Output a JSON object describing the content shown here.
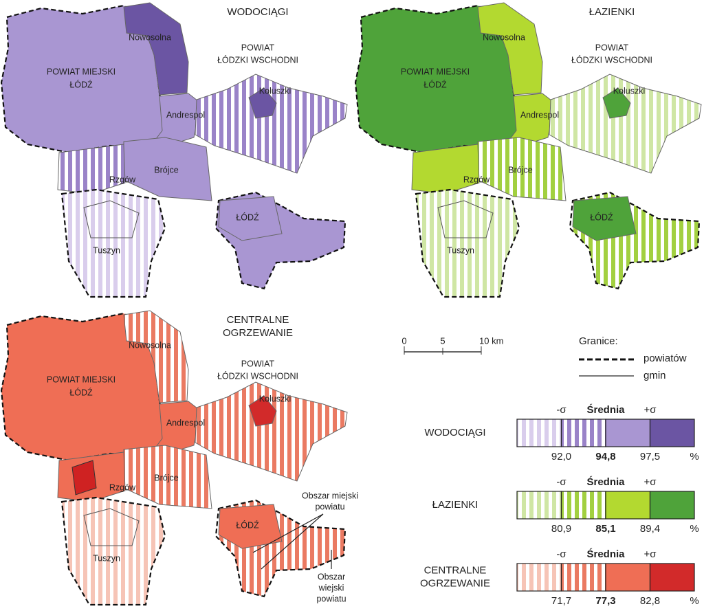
{
  "maps": [
    {
      "title": [
        "WODOCIĄGI"
      ],
      "labels": [
        "Nowosolna",
        "POWIAT MIEJSKI",
        "ŁÓDŹ",
        "POWIAT",
        "ŁÓDZKI WSCHODNI",
        "Koluszki",
        "Andrespol",
        "Brójce",
        "Rzgów",
        "ŁÓDŹ",
        "Tuszyn"
      ]
    },
    {
      "title": [
        "ŁAZIENKI"
      ],
      "labels": [
        "Nowosolna",
        "POWIAT MIEJSKI",
        "ŁÓDŹ",
        "POWIAT",
        "ŁÓDZKI WSCHODNI",
        "Koluszki",
        "Andrespol",
        "Brójce",
        "Rzgów",
        "ŁÓDŹ",
        "Tuszyn"
      ]
    },
    {
      "title": [
        "CENTRALNE",
        "OGRZEWANIE"
      ],
      "labels": [
        "Nowosolna",
        "POWIAT MIEJSKI",
        "ŁÓDŹ",
        "POWIAT",
        "ŁÓDZKI WSCHODNI",
        "Koluszki",
        "Andrespol",
        "Brójce",
        "Rzgów",
        "ŁÓDŹ",
        "Tuszyn"
      ],
      "annotations": [
        "Obszar miejski",
        "powiatu",
        "Obszar",
        "wiejski",
        "powiatu"
      ]
    }
  ],
  "scale": {
    "ticks": [
      "0",
      "5",
      "10 km"
    ]
  },
  "borders": {
    "title": "Granice:",
    "county": "powiatów",
    "commune": "gmin"
  },
  "legend": [
    {
      "name": [
        "WODOCIĄGI"
      ],
      "headers": [
        "-σ",
        "Średnia",
        "+σ"
      ],
      "values": [
        "92,0",
        "94,8",
        "97,5"
      ],
      "unit": "%"
    },
    {
      "name": [
        "ŁAZIENKI"
      ],
      "headers": [
        "-σ",
        "Średnia",
        "+σ"
      ],
      "values": [
        "80,9",
        "85,1",
        "89,4"
      ],
      "unit": "%"
    },
    {
      "name": [
        "CENTRALNE",
        "OGRZEWANIE"
      ],
      "headers": [
        "-σ",
        "Średnia",
        "+σ"
      ],
      "values": [
        "71,7",
        "77,3",
        "82,8"
      ],
      "unit": "%"
    }
  ]
}
